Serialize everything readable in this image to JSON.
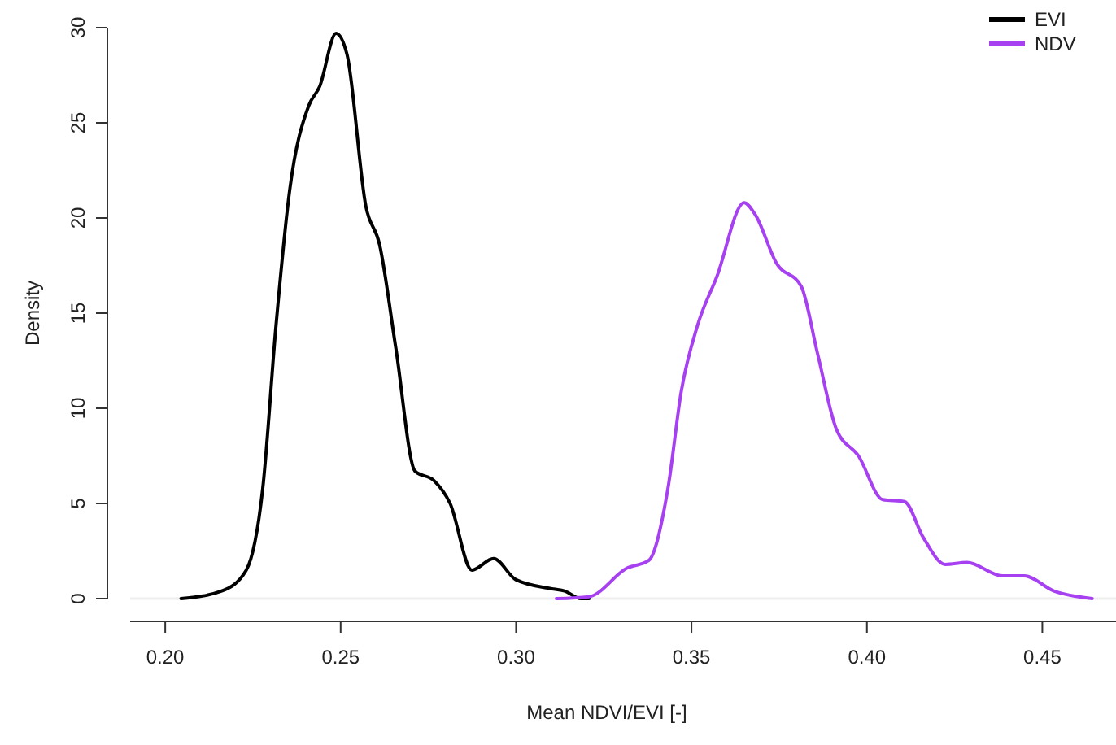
{
  "chart_data": {
    "type": "line",
    "xlabel": "Mean NDVI/EVI [-]",
    "ylabel": "Density",
    "xlim": [
      0.19,
      0.471
    ],
    "ylim": [
      0,
      30
    ],
    "xticks": [
      {
        "value": 0.2,
        "label": "0.20"
      },
      0.25,
      {
        "value": 0.3,
        "label": "0.30"
      },
      0.35,
      {
        "value": 0.4,
        "label": "0.40"
      },
      0.45
    ],
    "yticks": [
      0,
      5,
      10,
      15,
      20,
      25,
      30
    ],
    "grid": false,
    "legend": "top right",
    "line_style": "solid",
    "marker": "none",
    "ref_lines": [
      {
        "axis": "y",
        "value": 0,
        "color": "#eeeeee"
      }
    ],
    "series": [
      {
        "name": "EVI",
        "color": "#000000",
        "x": [
          0.2045,
          0.2161,
          0.2231,
          0.2278,
          0.2316,
          0.2355,
          0.2409,
          0.244,
          0.2487,
          0.2518,
          0.2572,
          0.2611,
          0.2657,
          0.2712,
          0.2766,
          0.2812,
          0.2874,
          0.2936,
          0.2999,
          0.3107,
          0.3138,
          0.3185,
          0.3208
        ],
        "values": [
          0,
          0.4,
          1.5,
          5.8,
          14.4,
          21.5,
          25.9,
          26.9,
          29.7,
          28.6,
          20.6,
          18.6,
          13.2,
          6.7,
          6.2,
          5.0,
          1.5,
          2.1,
          1.0,
          0.5,
          0.4,
          0,
          0
        ]
      },
      {
        "name": "NDV",
        "color": "#a640f0",
        "x": [
          0.3115,
          0.3208,
          0.3316,
          0.3378,
          0.3433,
          0.3471,
          0.3518,
          0.3572,
          0.365,
          0.3681,
          0.3743,
          0.3813,
          0.3859,
          0.3913,
          0.3976,
          0.4045,
          0.4107,
          0.4161,
          0.4223,
          0.4285,
          0.4386,
          0.4448,
          0.4533,
          0.4642
        ],
        "values": [
          0,
          0.1,
          1.6,
          2.0,
          5.8,
          10.9,
          14.4,
          16.9,
          20.8,
          20.2,
          17.6,
          16.4,
          12.9,
          8.9,
          7.5,
          5.2,
          5.1,
          3.2,
          1.8,
          1.9,
          1.2,
          1.2,
          0.4,
          0
        ]
      }
    ]
  }
}
